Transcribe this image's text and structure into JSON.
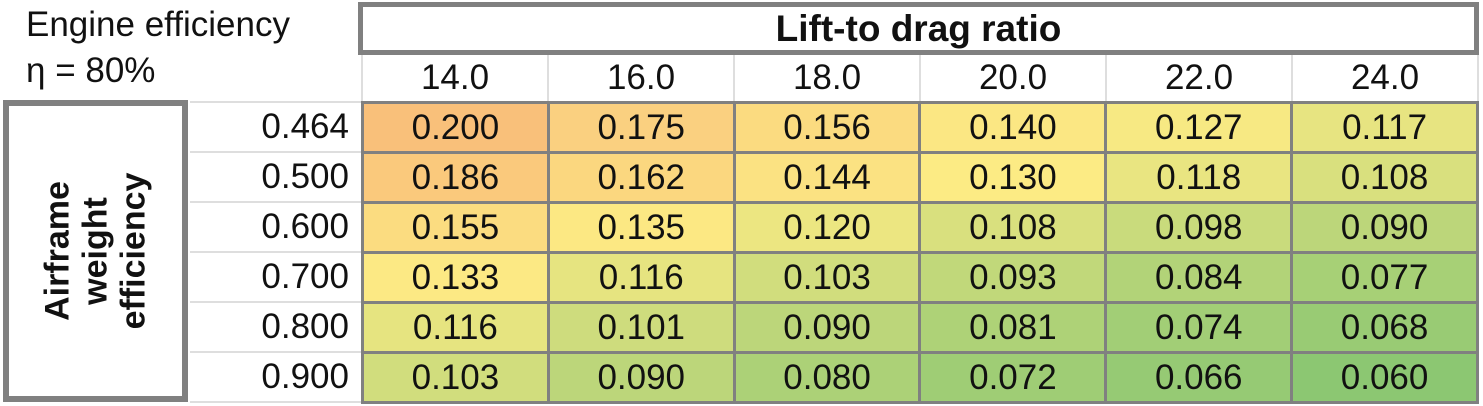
{
  "note": {
    "line1": "Engine efficiency",
    "line2": "η = 80%"
  },
  "table": {
    "column_group_title": "Lift-to drag ratio",
    "row_group_title_lines": [
      "Airframe",
      "weight",
      "efficiency"
    ],
    "column_headers": [
      "14.0",
      "16.0",
      "18.0",
      "20.0",
      "22.0",
      "24.0"
    ],
    "rows": [
      {
        "header": "0.464",
        "values": [
          "0.200",
          "0.175",
          "0.156",
          "0.140",
          "0.127",
          "0.117"
        ],
        "colors": [
          "#F9C07A",
          "#FAD080",
          "#FBDB80",
          "#FBE783",
          "#F7E983",
          "#E7E481"
        ]
      },
      {
        "header": "0.500",
        "values": [
          "0.186",
          "0.162",
          "0.144",
          "0.130",
          "0.118",
          "0.108"
        ],
        "colors": [
          "#FAC97C",
          "#FBD77F",
          "#FBE282",
          "#FCEB84",
          "#E9E581",
          "#D9E07E"
        ]
      },
      {
        "header": "0.600",
        "values": [
          "0.155",
          "0.135",
          "0.120",
          "0.108",
          "0.098",
          "0.090"
        ],
        "colors": [
          "#FBDC80",
          "#FCE883",
          "#ECE681",
          "#D9E07E",
          "#C9DB7C",
          "#BCD67A"
        ]
      },
      {
        "header": "0.700",
        "values": [
          "0.133",
          "0.116",
          "0.103",
          "0.093",
          "0.084",
          "0.077"
        ],
        "colors": [
          "#FCE984",
          "#E6E480",
          "#D1DD7D",
          "#C1D87A",
          "#B2D378",
          "#A7D076"
        ]
      },
      {
        "header": "0.800",
        "values": [
          "0.116",
          "0.101",
          "0.090",
          "0.081",
          "0.074",
          "0.068"
        ],
        "colors": [
          "#E6E480",
          "#CEDC7D",
          "#BCD67A",
          "#AED277",
          "#A2CE76",
          "#99CB74"
        ]
      },
      {
        "header": "0.900",
        "values": [
          "0.103",
          "0.090",
          "0.080",
          "0.072",
          "0.066",
          "0.060"
        ],
        "colors": [
          "#D1DD7D",
          "#BCD67A",
          "#ACD177",
          "#9FCD75",
          "#96CA74",
          "#8CC772"
        ]
      }
    ]
  },
  "colors": {
    "strong_border": "#808080",
    "separator": "#DEDEDE",
    "text": "#111111",
    "background": "#FFFFFF"
  },
  "chart_data": {
    "type": "heatmap",
    "title": "Lift-to drag ratio",
    "x_label": "Lift-to drag ratio",
    "y_label": "Airframe weight efficiency",
    "annotation": "Engine efficiency η = 80%",
    "x": [
      14.0,
      16.0,
      18.0,
      20.0,
      22.0,
      24.0
    ],
    "y": [
      0.464,
      0.5,
      0.6,
      0.7,
      0.8,
      0.9
    ],
    "values": [
      [
        0.2,
        0.175,
        0.156,
        0.14,
        0.127,
        0.117
      ],
      [
        0.186,
        0.162,
        0.144,
        0.13,
        0.118,
        0.108
      ],
      [
        0.155,
        0.135,
        0.12,
        0.108,
        0.098,
        0.09
      ],
      [
        0.133,
        0.116,
        0.103,
        0.093,
        0.084,
        0.077
      ],
      [
        0.116,
        0.101,
        0.09,
        0.081,
        0.074,
        0.068
      ],
      [
        0.103,
        0.09,
        0.08,
        0.072,
        0.066,
        0.06
      ]
    ],
    "color_scale": {
      "max_color": "#F9C07A",
      "mid_color": "#FCEB84",
      "min_color": "#8CC772",
      "meaning": "orange = high value, green = low value"
    }
  }
}
